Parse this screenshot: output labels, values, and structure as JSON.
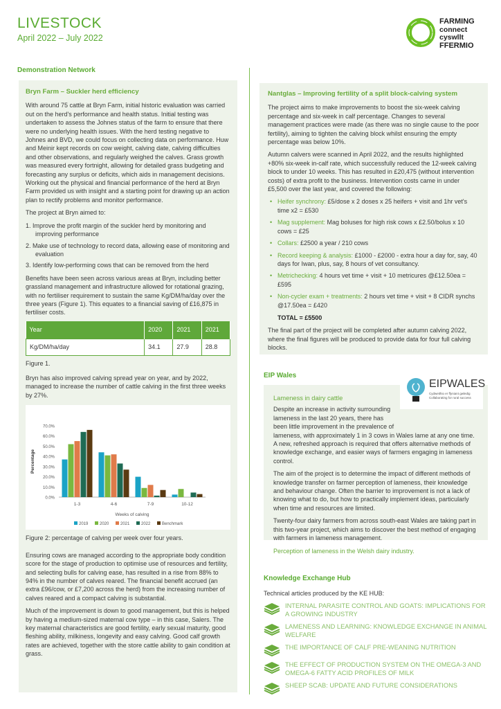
{
  "header": {
    "title": "LIVESTOCK",
    "subtitle": "April 2022 – July 2022",
    "logo": {
      "line1": "FARMING",
      "line2": "connect",
      "line3": "cyswllt",
      "line4": "FFERMIO"
    }
  },
  "section_demo": "Demonstration Network",
  "bryn": {
    "title": "Bryn Farm – Suckler herd efficiency",
    "p1": "With around 75 cattle at Bryn Farm, initial historic evaluation was carried out on the herd's performance and health status. Initial testing was undertaken to assess the Johnes status of the farm to ensure that there were no underlying health issues. With the herd testing negative to Johnes and BVD, we could focus on collecting data on performance. Huw and Meinir kept records on cow weight, calving date, calving difficulties and other observations, and regularly weighed the calves. Grass growth was measured every fortnight, allowing for detailed grass budgeting and forecasting any surplus or deficits, which aids in management decisions. Working out the physical and financial performance of the herd at Bryn Farm provided us with insight and a starting point for drawing up an action plan to rectify problems and monitor performance.",
    "p2": "The project at Bryn aimed to:",
    "aims": [
      "1.  Improve the profit margin of the suckler herd by monitoring and improving performance",
      "2.  Make use of technology to record data, allowing ease of monitoring and evaluation",
      "3.  Identify low-performing cows that can be removed from the herd"
    ],
    "p3": "Benefits have been seen across various areas at Bryn, including better grassland management and infrastructure allowed for rotational grazing, with no fertiliser requirement to sustain the same Kg/DM/ha/day over the three years (Figure 1). This equates to a financial saving of £16,875 in fertiliser costs.",
    "table": {
      "headers": [
        "Year",
        "2020",
        "2021",
        "2021"
      ],
      "row": [
        "Kg/DM/ha/day",
        "34.1",
        "27.9",
        "28.8"
      ]
    },
    "fig1": "Figure 1.",
    "p4": "Bryn has also improved calving spread year on year, and by 2022, managed to increase the number of cattle calving in the first three weeks by 27%.",
    "fig2": "Figure 2: percentage of calving per week over four years.",
    "p5": "Ensuring cows are managed according to the appropriate body condition score for the stage of production to optimise use of resources and fertility, and selecting bulls for calving ease, has resulted in a rise from 88% to 94% in the number of calves reared. The financial benefit accrued (an extra £96/cow, or £7,200 across the herd) from the increasing number of calves reared and a compact calving is substantial.",
    "p6": "Much of the improvement is down to good management, but this is helped by having a medium-sized maternal cow type – in this case, Salers. The key maternal characteristics are good fertility, early sexual maturity, good fleshing ability, milkiness, longevity and easy calving. Good calf growth rates are achieved, together with the store cattle ability to gain condition at grass."
  },
  "chart_data": {
    "type": "bar",
    "categories": [
      "1-3",
      "4-6",
      "7-9",
      "10-12"
    ],
    "series": [
      {
        "name": "2019",
        "color": "#1ba3c6",
        "values": [
          37,
          44,
          20,
          2.5
        ]
      },
      {
        "name": "2020",
        "color": "#7ab840",
        "values": [
          52,
          41,
          9,
          8
        ]
      },
      {
        "name": "2021",
        "color": "#e07b4a",
        "values": [
          55,
          42,
          12,
          0
        ]
      },
      {
        "name": "2022",
        "color": "#1f6b54",
        "values": [
          64,
          33,
          1.5,
          4.5
        ]
      },
      {
        "name": "Benchmark",
        "color": "#5a3a12",
        "values": [
          66,
          27,
          7,
          3
        ]
      }
    ],
    "xlabel": "Weeks of calving",
    "ylabel": "Percentage",
    "ylim": [
      0,
      70
    ],
    "yticks": [
      "0.0%",
      "10.0%",
      "20.0%",
      "30.0%",
      "40.0%",
      "50.0%",
      "60.0%",
      "70.0%"
    ],
    "legend": "bottom",
    "grid": false
  },
  "nantglas": {
    "title": "Nantglas – Improving fertility of a split block-calving system",
    "p1": "The project aims to make improvements to boost the six-week calving percentage and six-week in calf percentage. Changes to several management practices were made (as there was no single cause to the poor fertility), aiming to tighten the calving block whilst ensuring the empty percentage was below 10%.",
    "p2": "Autumn calvers were scanned in April 2022, and the results highlighted +80% six-week in-calf rate, which successfully reduced the 12-week calving block to under 10 weeks. This has resulted in £20,475 (without intervention costs) of extra profit to the business. Intervention costs came in under £5,500 over the last year, and covered the following:",
    "items": [
      {
        "k": "Heifer synchrony:",
        "v": " £5/dose x 2 doses x 25 heifers + visit and 1hr vet's time x2 = £530"
      },
      {
        "k": "Mag supplement:",
        "v": " Mag boluses for high risk cows x £2.50/bolus x 10 cows = £25"
      },
      {
        "k": "Collars:",
        "v": " £2500 a year / 210 cows"
      },
      {
        "k": "Record keeping & analysis:",
        "v": " £1000 - £2000 - extra hour a day for, say, 40 days for Iwan, plus, say, 8 hours of vet consultancy."
      },
      {
        "k": "Metrichecking:",
        "v": " 4 hours vet time + visit + 10 metricures @£12.50ea = £595"
      },
      {
        "k": "Non-cycler exam + treatments:",
        "v": " 2 hours vet time + visit + 8 CIDR synchs @17.50ea = £420"
      }
    ],
    "total": "TOTAL = £5500",
    "p3": "The final part of the project will be completed after autumn calving 2022, where the final figures will be produced to provide data for four full calving blocks."
  },
  "eip": {
    "section": "EIP Wales",
    "logo": {
      "name": "EIPWALES",
      "tag1": "Cydweithio er ffyniant gwledig",
      "tag2": "Collaborating for rural success"
    },
    "title": "Lameness in dairy cattle",
    "p1": "Despite an increase in activity surrounding lameness in the last 20 years, there has been little improvement in the prevalence of lameness, with approximately 1 in 3 cows in Wales lame at any one time. A new, refreshed approach is required that offers alternative methods of knowledge exchange, and easier ways of farmers engaging in lameness control.",
    "p2": "The aim of the project is to determine the impact of different methods of knowledge transfer on farmer perception of lameness, their knowledge and behaviour change. Often the barrier to improvement is not a lack of knowing what to do, but how to practically implement ideas, particularly when time and resources are limited.",
    "p3": "Twenty-four dairy farmers from across south-east Wales are taking part in this two-year project, which aims to discover the best method of engaging with farmers in lameness management.",
    "link": "Perception of lameness in the Welsh dairy industry."
  },
  "ke": {
    "section": "Knowledge Exchange Hub",
    "intro": "Technical articles produced by the KE HUB:",
    "articles": [
      "Internal parasite control and goats: implications for a growing industry",
      "Lameness and learning: knowledge exchange in animal welfare",
      "The importance of calf pre-weaning nutrition",
      "The effect of production system on the omega-3 and omega-6 fatty acid profiles of milk",
      "Sheep scab: update and future considerations"
    ],
    "icon": "layers-icon"
  }
}
